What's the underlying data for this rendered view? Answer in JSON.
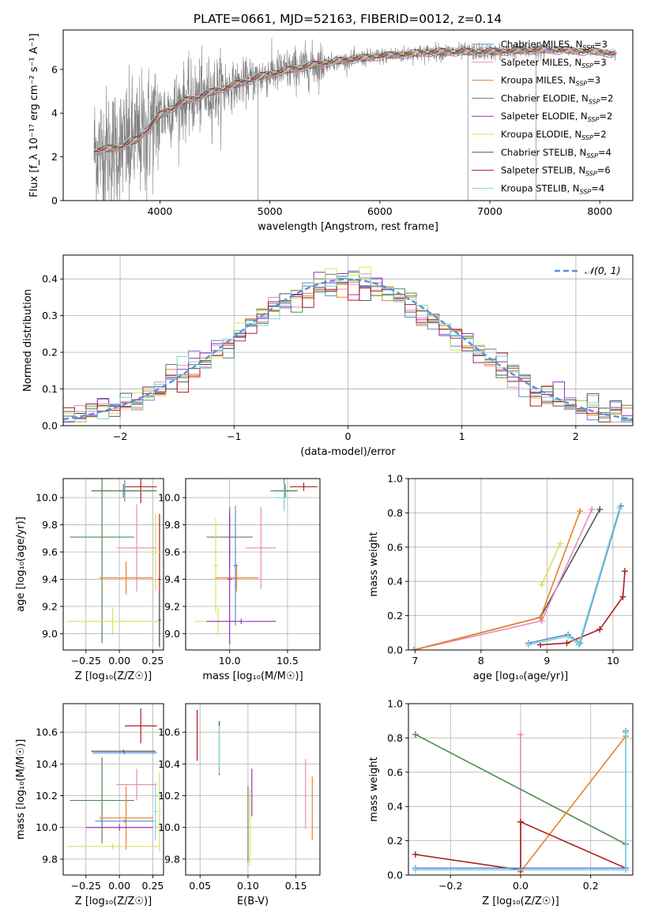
{
  "figure": {
    "title": "PLATE=0661, MJD=52163, FIBERID=0012, z=0.14"
  },
  "models": [
    {
      "name": "Chabrier MILES",
      "nssp": "3",
      "color": "#5f86d9"
    },
    {
      "name": "Salpeter MILES",
      "nssp": "3",
      "color": "#e88ab8"
    },
    {
      "name": "Kroupa MILES",
      "nssp": "3",
      "color": "#e8822b"
    },
    {
      "name": "Chabrier ELODIE",
      "nssp": "2",
      "color": "#4f8a4f"
    },
    {
      "name": "Salpeter ELODIE",
      "nssp": "2",
      "color": "#9b30c0"
    },
    {
      "name": "Kroupa ELODIE",
      "nssp": "2",
      "color": "#d8e35a"
    },
    {
      "name": "Chabrier STELIB",
      "nssp": "4",
      "color": "#555555"
    },
    {
      "name": "Salpeter STELIB",
      "nssp": "6",
      "color": "#b01c1c"
    },
    {
      "name": "Kroupa STELIB",
      "nssp": "4",
      "color": "#7fd4d6"
    }
  ],
  "legend_nssp_label": "N",
  "legend_nssp_sub": "SSP",
  "chart_data": [
    {
      "id": "spectrum",
      "type": "line",
      "xlabel": "wavelength [Angstrom, rest frame]",
      "ylabel": "Flux [f_λ 10⁻¹⁷ erg cm⁻² s⁻¹ A⁻¹]",
      "xlim": [
        3120,
        8300
      ],
      "ylim": [
        0,
        7.8
      ],
      "xticks": [
        4000,
        5000,
        6000,
        7000,
        8000
      ],
      "yticks": [
        0,
        2,
        4,
        6
      ],
      "grid": false,
      "legend_placement": "upper right",
      "data_color": "#808080",
      "continuum": {
        "x": [
          3400,
          3600,
          3800,
          4000,
          4200,
          4500,
          5000,
          5500,
          6000,
          6500,
          7000,
          7500,
          8000,
          8150
        ],
        "y": [
          2.3,
          2.4,
          2.8,
          3.9,
          4.5,
          5.0,
          5.8,
          6.3,
          6.6,
          6.8,
          6.8,
          6.9,
          6.8,
          6.7
        ]
      }
    },
    {
      "id": "residuals",
      "type": "histogram",
      "xlabel": "(data-model)/error",
      "ylabel": "Normed distribution",
      "xlim": [
        -2.5,
        2.5
      ],
      "ylim": [
        0,
        0.465
      ],
      "xticks": [
        -2,
        -1,
        0,
        1,
        2
      ],
      "yticks": [
        0.0,
        0.1,
        0.2,
        0.3,
        0.4
      ],
      "grid": true,
      "bin_width": 0.1,
      "reference_label": "𝒩(0, 1)",
      "legend_placement": "upper right"
    },
    {
      "id": "age-vs-Z",
      "type": "errorbar",
      "xlabel": "Z [log₁₀(Z/Z☉)]",
      "ylabel": "age  [log₁₀(age/yr)]",
      "xlim": [
        -0.42,
        0.33
      ],
      "ylim": [
        8.88,
        10.14
      ],
      "xticks": [
        -0.25,
        0.0,
        0.25
      ],
      "yticks": [
        9.0,
        9.2,
        9.4,
        9.6,
        9.8,
        10.0
      ],
      "grid": true,
      "points": [
        {
          "model": 7,
          "x": 0.16,
          "xerr": 0.12,
          "y": 10.08,
          "yerr": 0.12
        },
        {
          "model": 0,
          "x": 0.04,
          "xerr": 0.24,
          "y": 10.05,
          "yerr": 0.08
        },
        {
          "model": 3,
          "x": 0.03,
          "xerr": 0.24,
          "y": 10.05,
          "yerr": 0.05
        },
        {
          "model": 7,
          "x": 0.3,
          "xerr": 0.01,
          "y": 9.4,
          "yerr": 0.48
        },
        {
          "model": 1,
          "x": 0.13,
          "xerr": 0.15,
          "y": 9.63,
          "yerr": 0.32
        },
        {
          "model": 3,
          "x": -0.13,
          "xerr": 0.24,
          "y": 9.71,
          "yerr": 0.78
        },
        {
          "model": 2,
          "x": 0.05,
          "xerr": 0.2,
          "y": 9.41,
          "yerr": 0.12
        },
        {
          "model": 5,
          "x": 0.27,
          "xerr": 0.04,
          "y": 9.6,
          "yerr": 0.28
        },
        {
          "model": 5,
          "x": -0.05,
          "xerr": 0.34,
          "y": 9.09,
          "yerr": 0.1
        },
        {
          "model": 6,
          "x": 0.3,
          "xerr": 0.01,
          "y": 9.1,
          "yerr": 0.2
        }
      ]
    },
    {
      "id": "age-vs-mass",
      "type": "errorbar",
      "xlabel": "mass [log₁₀(M/M☉)]",
      "ylabel": "",
      "xlim": [
        9.62,
        10.78
      ],
      "ylim": [
        8.88,
        10.14
      ],
      "xticks": [
        10.0,
        10.5
      ],
      "yticks": [
        9.0,
        9.2,
        9.4,
        9.6,
        9.8,
        10.0
      ],
      "grid": true,
      "points": [
        {
          "model": 7,
          "x": 10.64,
          "xerr": 0.12,
          "y": 10.08,
          "yerr": 0.03
        },
        {
          "model": 0,
          "x": 10.47,
          "xerr": 0.12,
          "y": 10.05,
          "yerr": 0.1
        },
        {
          "model": 3,
          "x": 10.48,
          "xerr": 0.1,
          "y": 10.05,
          "yerr": 0.05
        },
        {
          "model": 8,
          "x": 10.47,
          "xerr": 0.06,
          "y": 10.0,
          "yerr": 0.1
        },
        {
          "model": 1,
          "x": 10.27,
          "xerr": 0.13,
          "y": 9.63,
          "yerr": 0.3
        },
        {
          "model": 3,
          "x": 10.0,
          "xerr": 0.2,
          "y": 9.71,
          "yerr": 0.22
        },
        {
          "model": 2,
          "x": 10.06,
          "xerr": 0.19,
          "y": 9.41,
          "yerr": 0.1
        },
        {
          "model": 5,
          "x": 9.9,
          "xerr": 0.2,
          "y": 9.09,
          "yerr": 0.1
        },
        {
          "model": 4,
          "x": 10.1,
          "xerr": 0.3,
          "y": 9.09,
          "yerr": 0.02
        },
        {
          "model": 5,
          "x": 9.88,
          "xerr": 0.02,
          "y": 9.5,
          "yerr": 0.35
        },
        {
          "model": 0,
          "x": 10.05,
          "xerr": 0.02,
          "y": 9.5,
          "yerr": 0.44
        },
        {
          "model": 4,
          "x": 10.0,
          "xerr": 0.02,
          "y": 9.4,
          "yerr": 0.48
        }
      ]
    },
    {
      "id": "massweight-vs-age",
      "type": "line",
      "xlabel": "age  [log₁₀(age/yr)]",
      "ylabel": "mass weight",
      "xlim": [
        6.9,
        10.3
      ],
      "ylim": [
        0.0,
        1.0
      ],
      "xticks": [
        7,
        8,
        9,
        10
      ],
      "yticks": [
        0.0,
        0.2,
        0.4,
        0.6,
        0.8,
        1.0
      ],
      "grid": true,
      "series": [
        {
          "model": 5,
          "x": [
            8.92,
            9.2
          ],
          "y": [
            0.38,
            0.62
          ]
        },
        {
          "model": 6,
          "x": [
            6.98,
            8.9,
            9.8
          ],
          "y": [
            0.0,
            0.19,
            0.82
          ]
        },
        {
          "model": 1,
          "x": [
            6.98,
            8.92,
            9.68
          ],
          "y": [
            0.0,
            0.17,
            0.82
          ]
        },
        {
          "model": 2,
          "x": [
            6.98,
            8.9,
            9.5
          ],
          "y": [
            0.0,
            0.19,
            0.81
          ]
        },
        {
          "model": 7,
          "x": [
            8.9,
            9.3,
            9.8,
            10.15,
            10.18
          ],
          "y": [
            0.03,
            0.04,
            0.12,
            0.31,
            0.46
          ]
        },
        {
          "model": 0,
          "x": [
            8.72,
            9.32,
            9.5,
            10.12
          ],
          "y": [
            0.04,
            0.09,
            0.04,
            0.84
          ]
        },
        {
          "model": 8,
          "x": [
            8.72,
            9.32,
            9.48,
            10.1
          ],
          "y": [
            0.03,
            0.08,
            0.03,
            0.83
          ]
        }
      ]
    },
    {
      "id": "mass-vs-Z",
      "type": "errorbar",
      "xlabel": "Z [log₁₀(Z/Z☉)]",
      "ylabel": "mass [log₁₀(M/M☉)]",
      "xlim": [
        -0.42,
        0.33
      ],
      "ylim": [
        9.7,
        10.78
      ],
      "xticks": [
        -0.25,
        0.0,
        0.25
      ],
      "yticks": [
        9.8,
        10.0,
        10.2,
        10.4,
        10.6
      ],
      "grid": true,
      "points": [
        {
          "model": 7,
          "x": 0.16,
          "xerr": 0.12,
          "y": 10.64,
          "yerr": 0.11
        },
        {
          "model": 6,
          "x": 0.03,
          "xerr": 0.24,
          "y": 10.48,
          "yerr": 0.01
        },
        {
          "model": 0,
          "x": 0.04,
          "xerr": 0.24,
          "y": 10.47,
          "yerr": 0.01
        },
        {
          "model": 1,
          "x": 0.13,
          "xerr": 0.15,
          "y": 10.27,
          "yerr": 0.1
        },
        {
          "model": 3,
          "x": -0.13,
          "xerr": 0.24,
          "y": 10.17,
          "yerr": 0.27
        },
        {
          "model": 2,
          "x": 0.05,
          "xerr": 0.2,
          "y": 10.06,
          "yerr": 0.2
        },
        {
          "model": 4,
          "x": 0.0,
          "xerr": 0.25,
          "y": 10.0,
          "yerr": 0.02
        },
        {
          "model": 0,
          "x": 0.04,
          "xerr": 0.22,
          "y": 10.04,
          "yerr": 0.01
        },
        {
          "model": 5,
          "x": -0.05,
          "xerr": 0.34,
          "y": 9.88,
          "yerr": 0.02
        },
        {
          "model": 5,
          "x": 0.3,
          "xerr": 0.01,
          "y": 10.1,
          "yerr": 0.25
        },
        {
          "model": 8,
          "x": 0.27,
          "xerr": 0.01,
          "y": 10.1,
          "yerr": 0.18
        }
      ]
    },
    {
      "id": "mass-vs-ebv",
      "type": "errorbar",
      "xlabel": "E(B-V)",
      "ylabel": "",
      "xlim": [
        0.035,
        0.175
      ],
      "ylim": [
        9.7,
        10.78
      ],
      "xticks": [
        0.05,
        0.1,
        0.15
      ],
      "yticks": [
        9.8,
        10.0,
        10.2,
        10.4,
        10.6
      ],
      "grid": true,
      "points": [
        {
          "model": 7,
          "x": 0.047,
          "xerr": 0.0,
          "y": 10.58,
          "yerr": 0.16
        },
        {
          "model": 6,
          "x": 0.07,
          "xerr": 0.0,
          "y": 10.5,
          "yerr": 0.17
        },
        {
          "model": 8,
          "x": 0.07,
          "xerr": 0.0,
          "y": 10.49,
          "yerr": 0.15
        },
        {
          "model": 3,
          "x": 0.1,
          "xerr": 0.0,
          "y": 10.02,
          "yerr": 0.24
        },
        {
          "model": 5,
          "x": 0.102,
          "xerr": 0.0,
          "y": 10.0,
          "yerr": 0.24
        },
        {
          "model": 4,
          "x": 0.104,
          "xerr": 0.0,
          "y": 10.22,
          "yerr": 0.15
        },
        {
          "model": 1,
          "x": 0.16,
          "xerr": 0.0,
          "y": 10.21,
          "yerr": 0.22
        },
        {
          "model": 2,
          "x": 0.167,
          "xerr": 0.0,
          "y": 10.12,
          "yerr": 0.2
        }
      ]
    },
    {
      "id": "massweight-vs-Z",
      "type": "line",
      "xlabel": "Z [log₁₀(Z/Z☉)]",
      "ylabel": "mass weight",
      "xlim": [
        -0.32,
        0.32
      ],
      "ylim": [
        0.0,
        1.0
      ],
      "xticks": [
        -0.2,
        0.0,
        0.2
      ],
      "yticks": [
        0.0,
        0.2,
        0.4,
        0.6,
        0.8,
        1.0
      ],
      "grid": true,
      "series": [
        {
          "model": 1,
          "x": [
            0.0,
            0.0
          ],
          "y": [
            0.02,
            0.82
          ]
        },
        {
          "model": 3,
          "x": [
            -0.3,
            0.3
          ],
          "y": [
            0.82,
            0.18
          ]
        },
        {
          "model": 2,
          "x": [
            0.0,
            0.3
          ],
          "y": [
            0.02,
            0.81
          ]
        },
        {
          "model": 7,
          "x": [
            -0.3,
            0.0,
            0.0,
            0.3
          ],
          "y": [
            0.12,
            0.03,
            0.31,
            0.04
          ]
        },
        {
          "model": 0,
          "x": [
            -0.3,
            0.3,
            0.3
          ],
          "y": [
            0.04,
            0.04,
            0.84
          ]
        },
        {
          "model": 8,
          "x": [
            -0.3,
            0.3,
            0.3
          ],
          "y": [
            0.03,
            0.03,
            0.83
          ]
        }
      ]
    }
  ]
}
